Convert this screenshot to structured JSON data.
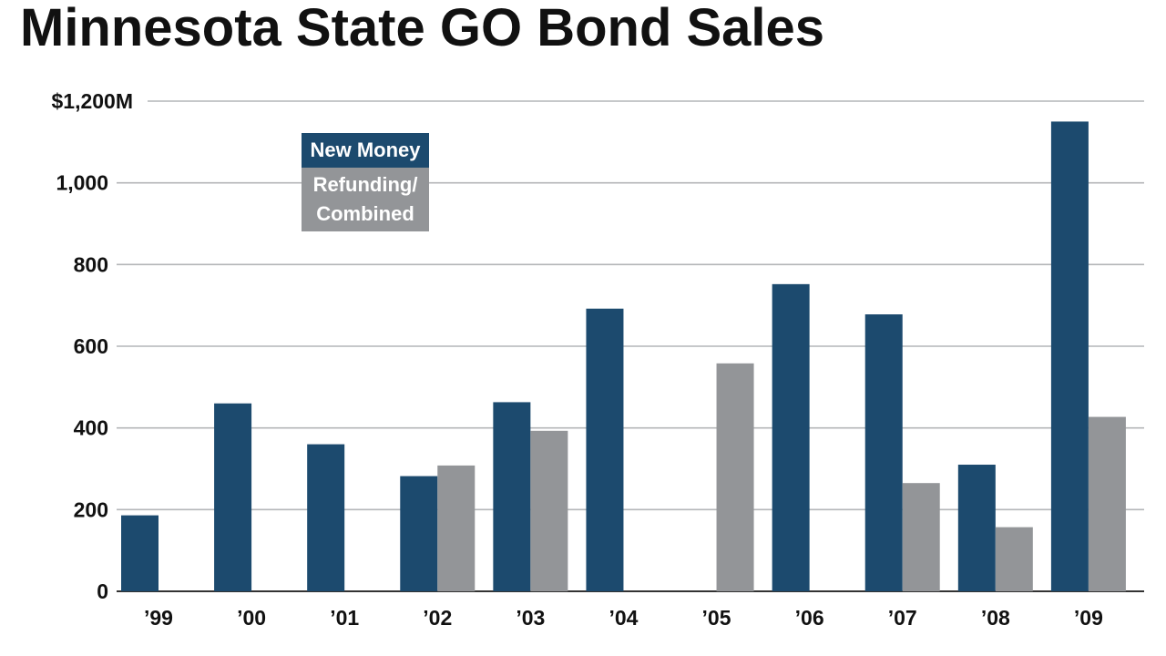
{
  "chart_data": {
    "type": "bar",
    "title": "Minnesota State GO Bond Sales",
    "xlabel": "",
    "ylabel": "",
    "ylim": [
      0,
      1200
    ],
    "yticks": [
      0,
      200,
      400,
      600,
      800,
      1000,
      1200
    ],
    "ytick_labels": [
      "0",
      "200",
      "400",
      "600",
      "800",
      "1,000",
      "$1,200M"
    ],
    "grid": true,
    "categories": [
      "’99",
      "’00",
      "’01",
      "’02",
      "’03",
      "’04",
      "’05",
      "’06",
      "’07",
      "’08",
      "’09"
    ],
    "series": [
      {
        "name": "New Money",
        "color": "#1c4a6e",
        "values": [
          186,
          460,
          360,
          282,
          463,
          692,
          null,
          752,
          678,
          310,
          1150
        ]
      },
      {
        "name": "Refunding/\nCombined",
        "color": "#939598",
        "values": [
          null,
          null,
          null,
          308,
          393,
          null,
          558,
          null,
          265,
          157,
          427
        ]
      }
    ],
    "legend_position": "top-left",
    "legend": [
      {
        "lines": [
          "New Money"
        ],
        "color": "#1c4a6e"
      },
      {
        "lines": [
          "Refunding/",
          "Combined"
        ],
        "color": "#939598"
      }
    ]
  }
}
